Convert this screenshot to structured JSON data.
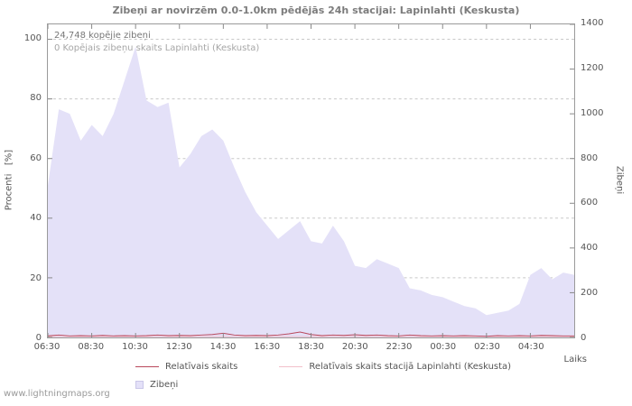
{
  "title": "Zibeņi ar novirzēm 0.0-1.0km pēdējās 24h stacijai: Lapinlahti (Keskusta)",
  "annotations": {
    "total_strikes": "24,748 kopējie zibeņi",
    "station_total": "0 Kopējais zibeņu skaits Lapinlahti (Keskusta)"
  },
  "axes": {
    "left_label": "Procenti   [%]",
    "right_label": "Zibeņi",
    "x_label": "Laiks",
    "left_ticks": [
      0,
      20,
      40,
      60,
      80,
      100
    ],
    "right_ticks": [
      0,
      200,
      400,
      600,
      800,
      1000,
      1200,
      1400
    ],
    "x_ticks": [
      "06:30",
      "08:30",
      "10:30",
      "12:30",
      "14:30",
      "16:30",
      "18:30",
      "20:30",
      "22:30",
      "00:30",
      "02:30",
      "04:30"
    ]
  },
  "legend": [
    {
      "label": "Relatīvais skaits",
      "color": "#b9485c",
      "type": "line"
    },
    {
      "label": "Relatīvais skaits stacijā Lapinlahti (Keskusta)",
      "color": "#f2c0ca",
      "type": "line"
    },
    {
      "label": "Zibeņi",
      "color": "#e4e1f8",
      "type": "area"
    }
  ],
  "watermark": "www.lightningmaps.org",
  "colors": {
    "grid": "#c8c8c8",
    "plot_border": "#9a9a9a",
    "tick": "#888888",
    "area_fill": "#e4e1f8",
    "line_relative": "#b9485c",
    "line_station": "#f2c0ca"
  },
  "chart_data": {
    "type": "area",
    "title": "Zibeņi ar novirzēm 0.0-1.0km pēdējās 24h stacijai: Lapinlahti (Keskusta)",
    "xlabel": "Laiks",
    "ylabel_left": "Procenti [%]",
    "ylabel_right": "Zibeņi",
    "ylim_left": [
      0,
      105
    ],
    "ylim_right": [
      0,
      1400
    ],
    "grid": "dashed-horizontal",
    "legend_position": "bottom",
    "x": [
      "06:30",
      "07:00",
      "07:30",
      "08:00",
      "08:30",
      "09:00",
      "09:30",
      "10:00",
      "10:30",
      "11:00",
      "11:30",
      "12:00",
      "12:30",
      "13:00",
      "13:30",
      "14:00",
      "14:30",
      "15:00",
      "15:30",
      "16:00",
      "16:30",
      "17:00",
      "17:30",
      "18:00",
      "18:30",
      "19:00",
      "19:30",
      "20:00",
      "20:30",
      "21:00",
      "21:30",
      "22:00",
      "22:30",
      "23:00",
      "23:30",
      "00:00",
      "00:30",
      "01:00",
      "01:30",
      "02:00",
      "02:30",
      "03:00",
      "03:30",
      "04:00",
      "04:30",
      "05:00",
      "05:30",
      "06:00",
      "06:30"
    ],
    "series": [
      {
        "name": "Zibeņi",
        "type": "area",
        "axis": "right",
        "color": "#e4e1f8",
        "values": [
          680,
          1020,
          1000,
          880,
          950,
          900,
          1000,
          1150,
          1300,
          1060,
          1030,
          1050,
          760,
          820,
          900,
          930,
          880,
          760,
          650,
          560,
          500,
          440,
          480,
          520,
          430,
          420,
          500,
          430,
          320,
          310,
          350,
          330,
          310,
          220,
          210,
          190,
          180,
          160,
          140,
          130,
          100,
          110,
          120,
          150,
          280,
          310,
          260,
          290,
          280
        ]
      },
      {
        "name": "Relatīvais skaits",
        "type": "line",
        "axis": "left",
        "color": "#b9485c",
        "values": [
          0.5,
          0.8,
          0.5,
          0.6,
          0.5,
          0.7,
          0.5,
          0.6,
          0.5,
          0.6,
          0.8,
          0.6,
          0.7,
          0.6,
          0.8,
          1.0,
          1.4,
          0.8,
          0.6,
          0.7,
          0.6,
          0.8,
          1.2,
          1.8,
          1.0,
          0.6,
          0.8,
          0.7,
          0.9,
          0.7,
          0.8,
          0.6,
          0.5,
          0.8,
          0.6,
          0.5,
          0.6,
          0.5,
          0.6,
          0.5,
          0.4,
          0.6,
          0.5,
          0.6,
          0.5,
          0.7,
          0.6,
          0.5,
          0.5
        ]
      },
      {
        "name": "Relatīvais skaits stacijā Lapinlahti (Keskusta)",
        "type": "line",
        "axis": "left",
        "color": "#f2c0ca",
        "values": [
          0,
          0,
          0,
          0,
          0,
          0,
          0,
          0,
          0,
          0,
          0,
          0,
          0,
          0,
          0,
          0,
          0,
          0,
          0,
          0,
          0,
          0,
          0,
          0,
          0,
          0,
          0,
          0,
          0,
          0,
          0,
          0,
          0,
          0,
          0,
          0,
          0,
          0,
          0,
          0,
          0,
          0,
          0,
          0,
          0,
          0,
          0,
          0,
          0
        ]
      }
    ]
  }
}
